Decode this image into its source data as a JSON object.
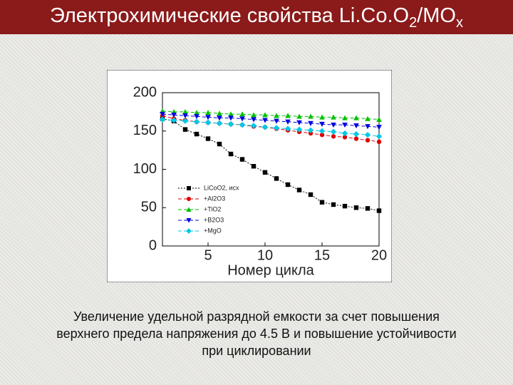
{
  "slide": {
    "title": [
      "Электрохимические свойства Li.Co.O",
      "2",
      "/MO",
      "x"
    ],
    "caption": [
      "Увеличение удельной разрядной емкости за счет повышения",
      "верхнего предела напряжения до 4.5 В и повышение устойчивости",
      "при циклировании"
    ]
  },
  "chart_data": {
    "type": "line",
    "xlabel": "Номер цикла",
    "x": [
      1,
      2,
      3,
      4,
      5,
      6,
      7,
      8,
      9,
      10,
      11,
      12,
      13,
      14,
      15,
      16,
      17,
      18,
      19,
      20
    ],
    "xlim": [
      1,
      20
    ],
    "xticks": [
      5,
      10,
      15,
      20
    ],
    "ylim": [
      0,
      200
    ],
    "yticks": [
      0,
      50,
      100,
      150,
      200
    ],
    "series": [
      {
        "name": "LiCoO2, исх",
        "color": "#000000",
        "marker": "square",
        "values": [
          166,
          163,
          152,
          146,
          140,
          133,
          120,
          113,
          104,
          96,
          88,
          80,
          73,
          67,
          57,
          54,
          52,
          50,
          49,
          46
        ]
      },
      {
        "name": "+Al2O3",
        "color": "#e00000",
        "marker": "circle",
        "values": [
          170,
          166,
          164,
          162,
          161,
          160,
          159,
          158,
          156,
          155,
          153,
          151,
          149,
          147,
          145,
          143,
          142,
          140,
          138,
          136
        ]
      },
      {
        "name": "+TiO2",
        "color": "#00c000",
        "marker": "triangle-up",
        "values": [
          176,
          175,
          175,
          174,
          174,
          173,
          172,
          172,
          171,
          171,
          170,
          170,
          169,
          169,
          168,
          168,
          167,
          167,
          166,
          165
        ]
      },
      {
        "name": "+B2O3",
        "color": "#0000e0",
        "marker": "triangle-down",
        "values": [
          172,
          171,
          170,
          169,
          168,
          167,
          167,
          166,
          165,
          164,
          163,
          162,
          161,
          160,
          159,
          158,
          158,
          157,
          156,
          155
        ]
      },
      {
        "name": "+MgO",
        "color": "#00c8e8",
        "marker": "diamond",
        "values": [
          165,
          164,
          163,
          162,
          161,
          160,
          159,
          158,
          157,
          155,
          154,
          153,
          152,
          151,
          150,
          149,
          147,
          146,
          145,
          143
        ]
      }
    ]
  }
}
